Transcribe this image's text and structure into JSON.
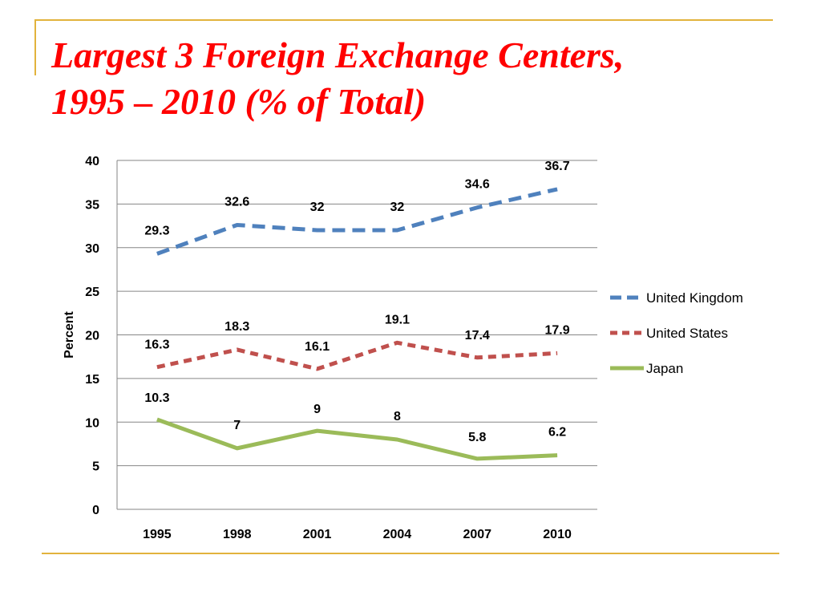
{
  "slide": {
    "title_line1": "Largest 3 Foreign Exchange Centers,",
    "title_line2": "1995 – 2010 (% of Total)"
  },
  "chart_data": {
    "type": "line",
    "title": "",
    "xlabel": "",
    "ylabel": "Percent",
    "categories": [
      "1995",
      "1998",
      "2001",
      "2004",
      "2007",
      "2010"
    ],
    "ylim": [
      0,
      40
    ],
    "yticks": [
      0,
      5,
      10,
      15,
      20,
      25,
      30,
      35,
      40
    ],
    "grid": "horizontal",
    "legend_position": "right",
    "series": [
      {
        "name": "United Kingdom",
        "color": "#4f81bd",
        "style": "dashed",
        "values": [
          29.3,
          32.6,
          32,
          32,
          34.6,
          36.7
        ],
        "labels": [
          "29.3",
          "32.6",
          "32",
          "32",
          "34.6",
          "36.7"
        ]
      },
      {
        "name": "United States",
        "color": "#c0504d",
        "style": "dotted",
        "values": [
          16.3,
          18.3,
          16.1,
          19.1,
          17.4,
          17.9
        ],
        "labels": [
          "16.3",
          "18.3",
          "16.1",
          "19.1",
          "17.4",
          "17.9"
        ]
      },
      {
        "name": "Japan",
        "color": "#9bbb59",
        "style": "solid",
        "values": [
          10.3,
          7,
          9,
          8,
          5.8,
          6.2
        ],
        "labels": [
          "10.3",
          "7",
          "9",
          "8",
          "5.8",
          "6.2"
        ]
      }
    ]
  }
}
